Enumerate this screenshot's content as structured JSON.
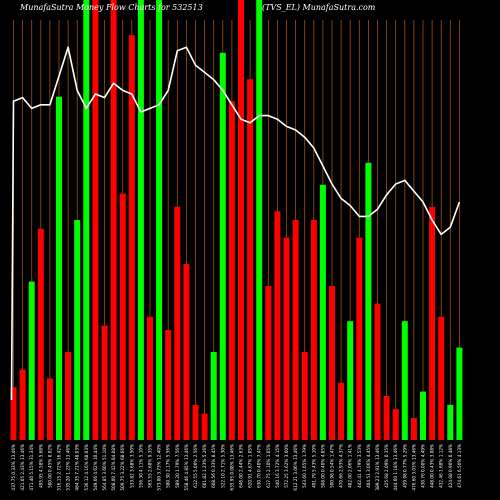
{
  "header": {
    "left": "MunafaSutra  Money Flow  Charts for 532513",
    "right": "(TVS_EL)  MunafaSutra.com"
  },
  "colors": {
    "background": "#000000",
    "up": "#00ff00",
    "down": "#ff0000",
    "grid": "#a0520a",
    "line": "#ffffff"
  },
  "chart_data": {
    "type": "bar",
    "ylim": [
      0,
      100
    ],
    "grid": "vertical",
    "categories": [
      "437.75 0.33% 13.46%",
      "421.05 2.43% 13.46%",
      "471.40 5.15% 31.34%",
      "495.95 4.58% 5.68%",
      "500.00 0.45% 0.02%",
      "516.15 2.72% 16.42%",
      "535.20 1.23% 13.46%",
      "484.35 7.21% 48.03%",
      "536.12 4.16% 68.03%",
      "549.66 4.62% 10.44%",
      "564.85 3.60% 51.10%",
      "508.00 7.42% 84.08%",
      "509.75 3.22% 68.66%",
      "533.82 3.68% 3.50%",
      "556.30 4.11% 5.10%",
      "563.55 2.68% 9.35%",
      "573.00 3.73% 12.40%",
      "580.30 2.17% 5.56%",
      "589.20 1.79% 7.56%",
      "558.46 4.85% 13.46%",
      "612.55 5.00% 2.56%",
      "601.82 1.23% 5.26%",
      "608.56 0.33% 8.45%",
      "522.10 2.71% 5.30%",
      "635.95 0.08% 13.46%",
      "646.00 2.44% 2.63%",
      "620.91 4.67% 1.05%",
      "630.70 0.40% 7.47%",
      "617.75 2.10% 1.05%",
      "540.16 3.72% 4.15%",
      "572.25 3.62% 3.60%",
      "612.21 3.06% 13.46%",
      "543.60 1.65% 1.79%",
      "491.79 5.43% 5.10%",
      "508.00 0.40% 4.85%",
      "500.98 0.54% 1.47%",
      "470.66 2.93% 4.37%",
      "482.00 2.06% 1.41%",
      "442.41 4.79% 3.53%",
      "404.51 3.06% 4.45%",
      "389.23 2.91% 13.46%",
      "425.68 2.09% 0.35%",
      "444.60 1.18% 13.46%",
      "459.98 0.77% 5.29%",
      "476.60 3.03% 13.46%",
      "430.76 0.00% 4.49%",
      "448.00 0.43% 3.08%",
      "432.46 1.68% 1.12%",
      "424.08 0.90% 0.48%",
      "474.61 6.50% 4.13%"
    ],
    "series": [
      {
        "values": [
          12,
          16,
          36,
          48,
          14,
          78,
          20,
          50,
          100,
          100,
          26,
          100,
          56,
          92,
          100,
          28,
          100,
          25,
          53,
          40,
          8,
          6,
          20,
          88,
          77,
          100,
          82,
          100,
          35,
          52,
          46,
          50,
          20,
          50,
          58,
          35,
          13,
          27,
          46,
          63,
          31,
          10,
          7,
          27,
          5,
          11,
          53,
          28,
          8,
          21
        ],
        "directions": [
          "down",
          "down",
          "up",
          "down",
          "down",
          "up",
          "down",
          "up",
          "up",
          "down",
          "down",
          "down",
          "down",
          "down",
          "up",
          "down",
          "up",
          "down",
          "down",
          "down",
          "down",
          "down",
          "up",
          "up",
          "down",
          "down",
          "down",
          "up",
          "down",
          "down",
          "down",
          "down",
          "down",
          "down",
          "up",
          "down",
          "down",
          "up",
          "down",
          "up",
          "down",
          "down",
          "down",
          "up",
          "down",
          "up",
          "down",
          "down",
          "up",
          "up"
        ]
      },
      {
        "type": "line",
        "values": [
          83,
          84,
          81,
          82,
          82,
          90,
          98,
          86,
          81,
          85,
          84,
          88,
          86,
          85,
          80,
          81,
          82,
          86,
          97,
          98,
          93,
          91,
          89,
          86,
          82,
          78,
          77,
          79,
          79,
          78,
          76,
          75,
          73,
          70,
          65,
          60,
          56,
          54,
          51,
          51,
          53,
          57,
          60,
          61,
          58,
          55,
          50,
          46,
          48,
          55
        ]
      }
    ]
  }
}
